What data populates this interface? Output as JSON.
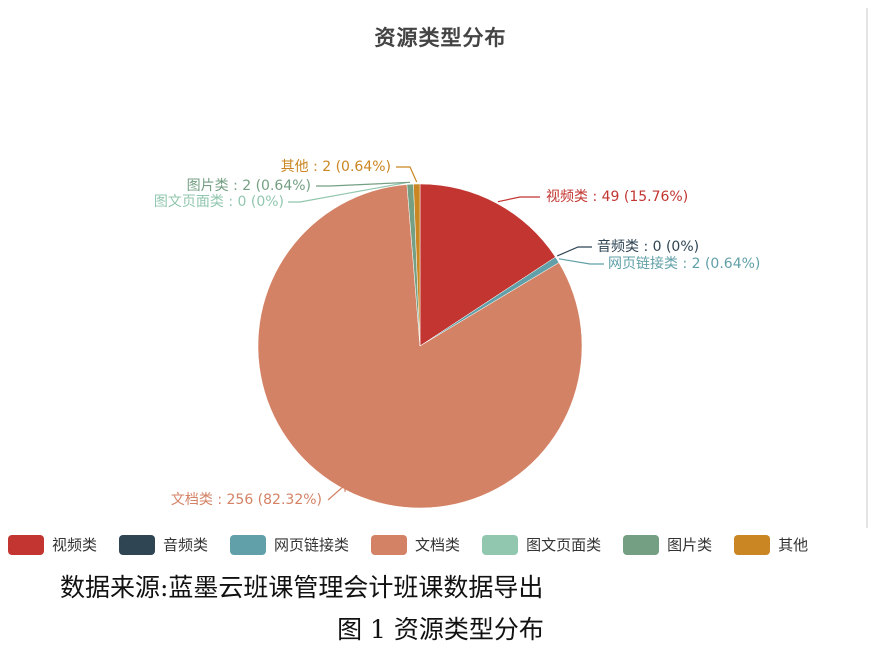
{
  "chart_data": {
    "type": "pie",
    "title": "资源类型分布",
    "slices": [
      {
        "name": "视频类",
        "value": 49,
        "percent": "15.76%",
        "label": "视频类 : 49 (15.76%)",
        "color": "#c23531"
      },
      {
        "name": "音频类",
        "value": 0,
        "percent": "0%",
        "label": "音频类 : 0 (0%)",
        "color": "#2f4554"
      },
      {
        "name": "网页链接类",
        "value": 2,
        "percent": "0.64%",
        "label": "网页链接类 : 2 (0.64%)",
        "color": "#61a0a8"
      },
      {
        "name": "文档类",
        "value": 256,
        "percent": "82.32%",
        "label": "文档类 : 256 (82.32%)",
        "color": "#d48265"
      },
      {
        "name": "图文页面类",
        "value": 0,
        "percent": "0%",
        "label": "图文页面类 : 0 (0%)",
        "color": "#91c7ae"
      },
      {
        "name": "图片类",
        "value": 2,
        "percent": "0.64%",
        "label": "图片类 : 2 (0.64%)",
        "color": "#749f83"
      },
      {
        "name": "其他",
        "value": 2,
        "percent": "0.64%",
        "label": "其他 : 2 (0.64%)",
        "color": "#ca8622"
      }
    ],
    "legend_position": "bottom"
  },
  "source_note": "数据来源:蓝墨云班课管理会计班课数据导出",
  "figure_caption": "图 1  资源类型分布"
}
